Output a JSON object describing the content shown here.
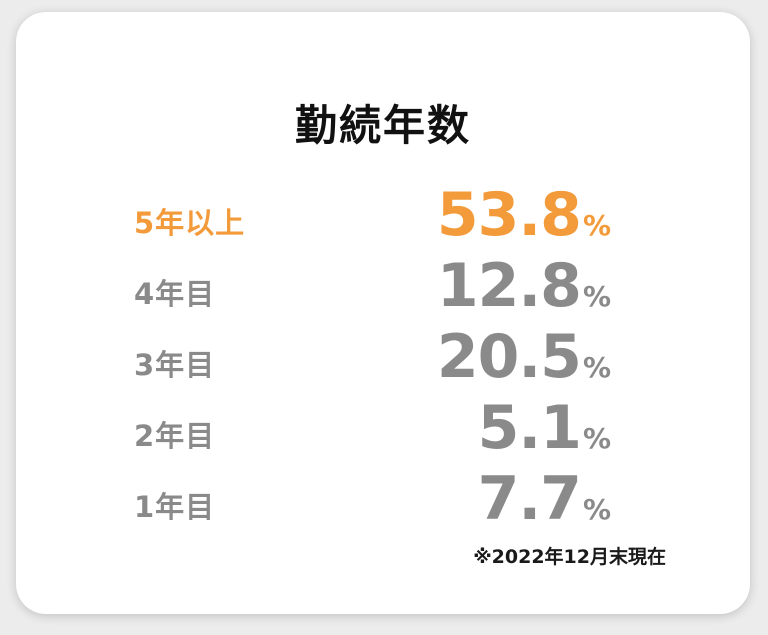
{
  "title": "勤続年数",
  "note": "※2022年12月末現在",
  "colors": {
    "highlight": "#f39a3a",
    "muted": "#8a8a8a"
  },
  "chart_data": {
    "type": "table",
    "title": "勤続年数",
    "unit": "%",
    "categories": [
      "5年以上",
      "4年目",
      "3年目",
      "2年目",
      "1年目"
    ],
    "values": [
      53.8,
      12.8,
      20.5,
      5.1,
      7.7
    ],
    "value_labels": [
      "53.8",
      "12.8",
      "20.5",
      "5.1",
      "7.7"
    ],
    "highlight_index": 0
  }
}
